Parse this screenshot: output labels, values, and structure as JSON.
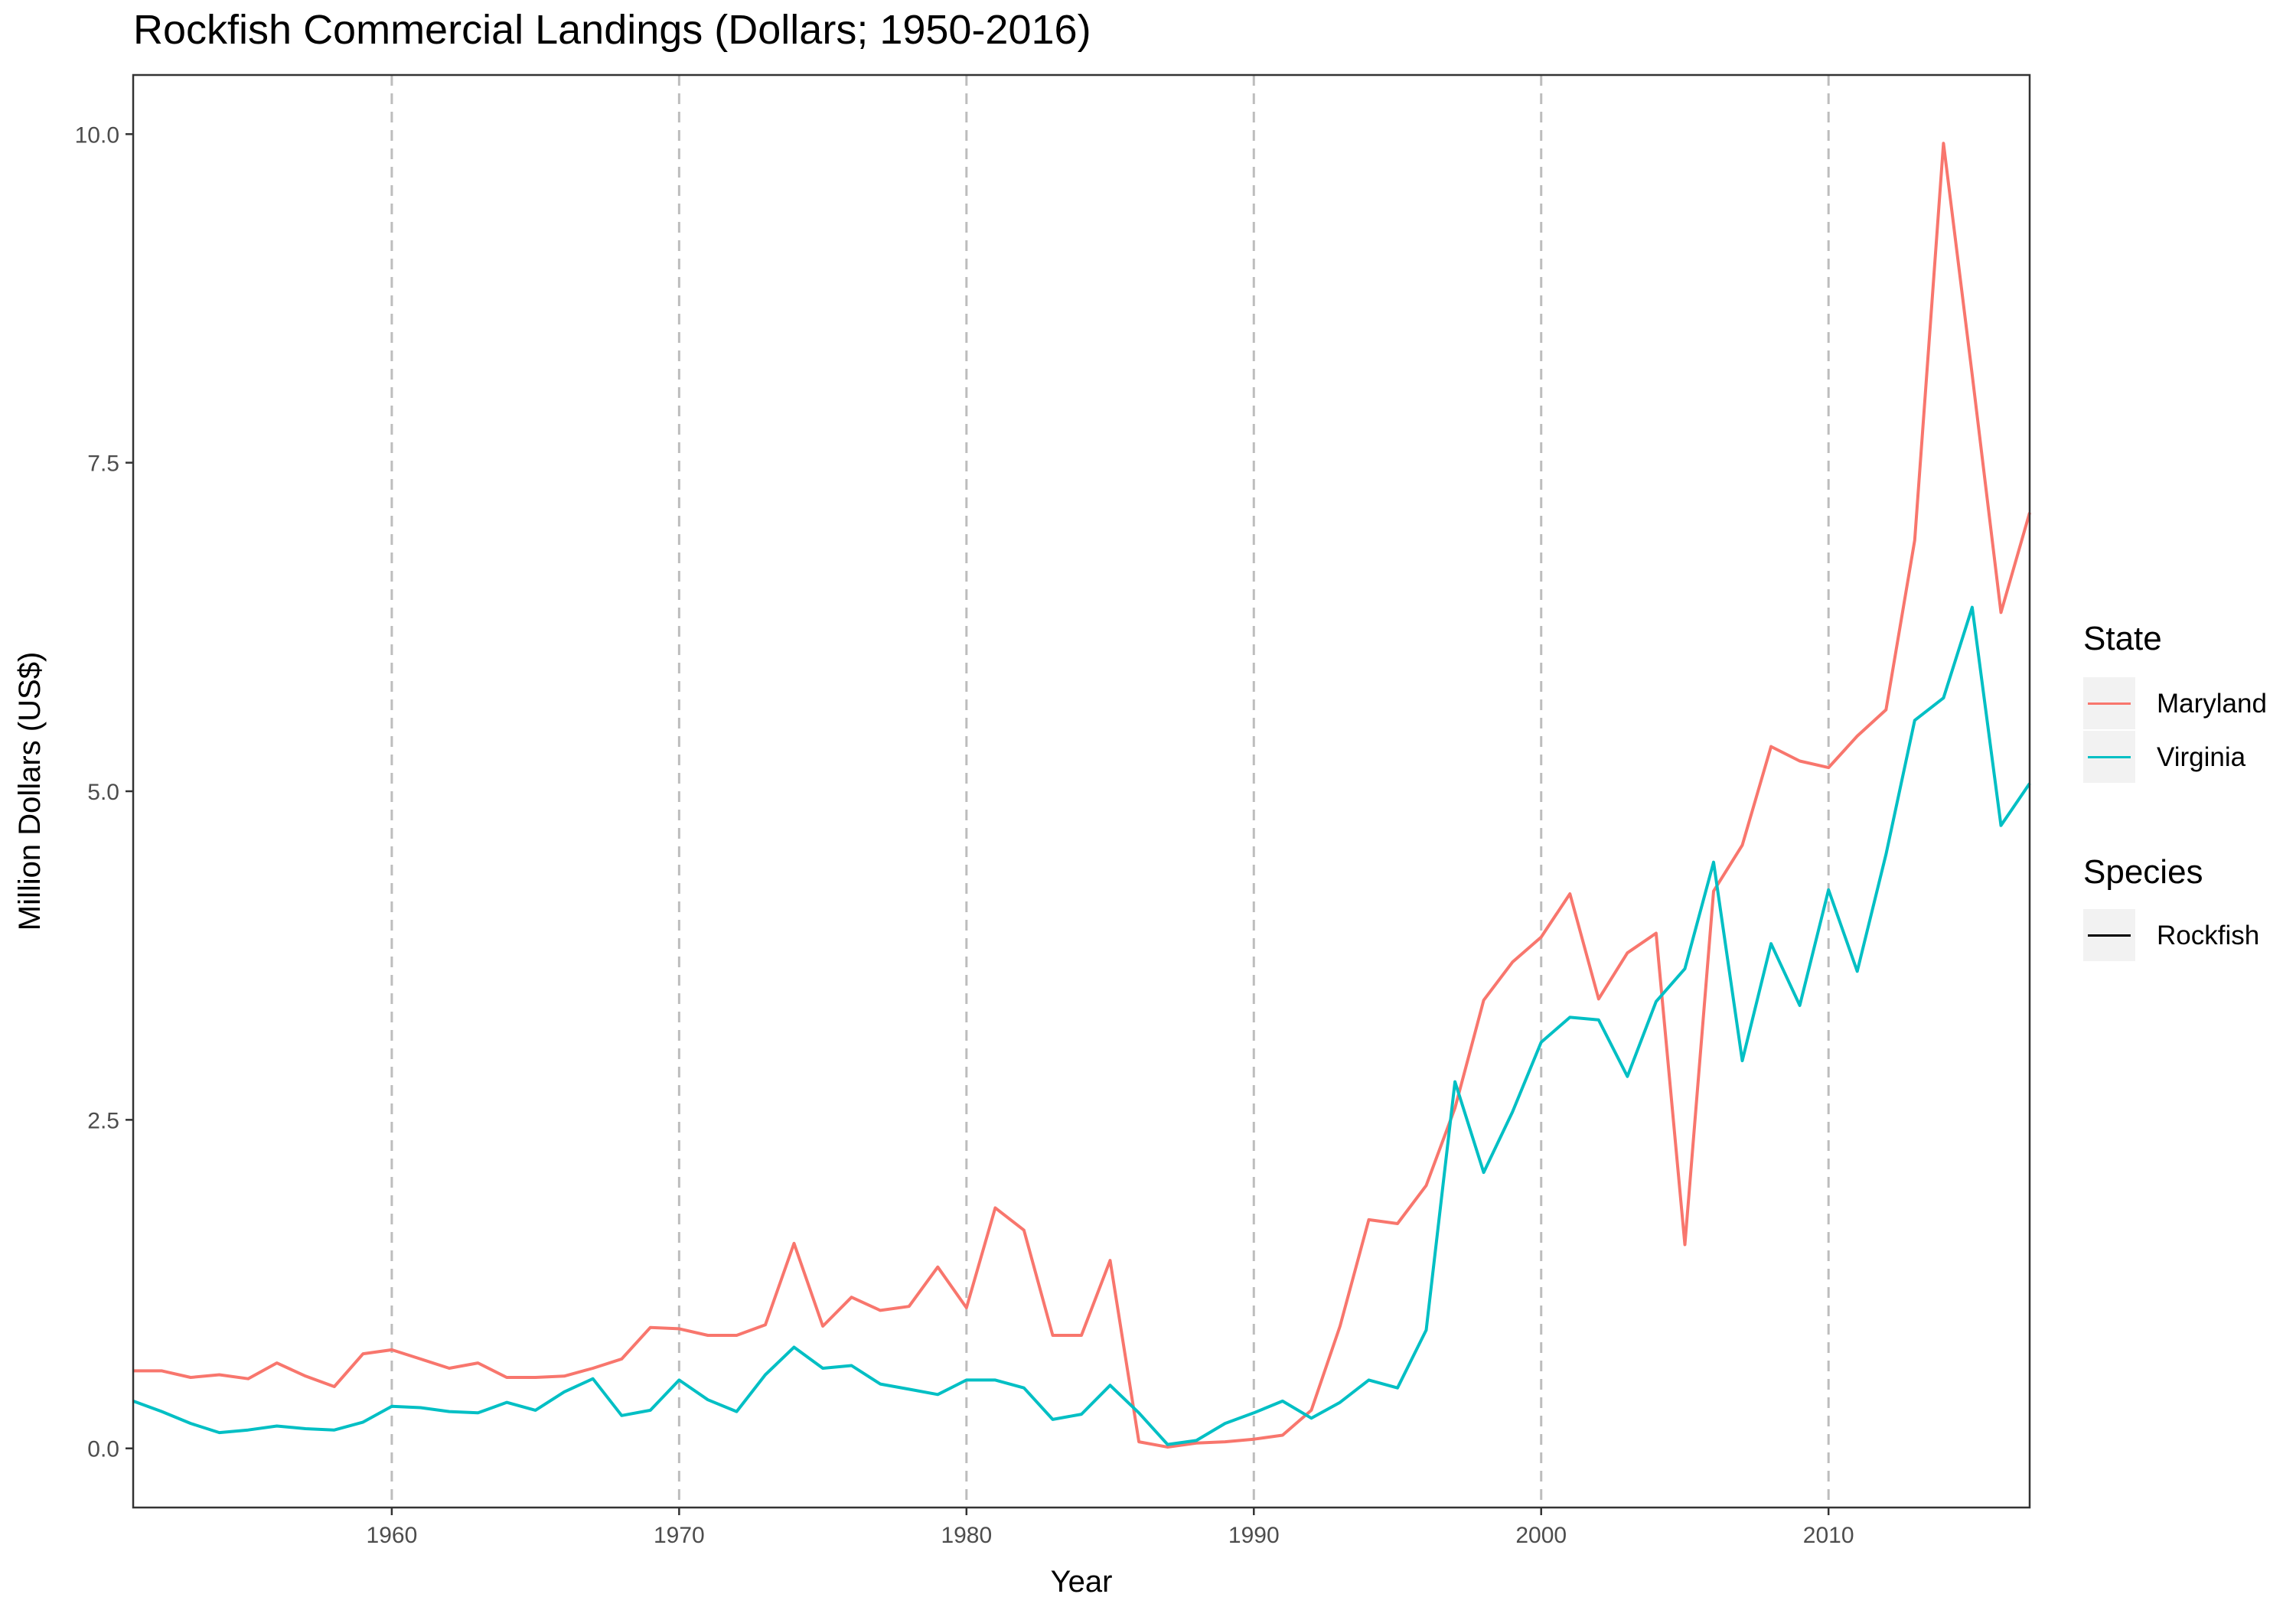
{
  "chart_data": {
    "type": "line",
    "title": "Rockfish Commercial Landings (Dollars; 1950-2016)",
    "xlabel": "Year",
    "ylabel": "Million Dollars (US$)",
    "xlim": [
      1951,
      2017
    ],
    "ylim": [
      -0.45,
      10.45
    ],
    "x_ticks": [
      1960,
      1970,
      1980,
      1990,
      2000,
      2010
    ],
    "x_tick_labels": [
      "1960",
      "1970",
      "1980",
      "1990",
      "2000",
      "2010"
    ],
    "y_ticks": [
      0,
      2.5,
      5,
      7.5,
      10
    ],
    "y_tick_labels": [
      "0.0",
      "2.5",
      "5.0",
      "7.5",
      "10.0"
    ],
    "vertical_dashed_lines_at": [
      1960,
      1970,
      1980,
      1990,
      2000,
      2010
    ],
    "grid": false,
    "legend_position": "right",
    "legends": [
      {
        "title": "State",
        "entries": [
          "Maryland",
          "Virginia"
        ]
      },
      {
        "title": "Species",
        "entries": [
          "Rockfish"
        ]
      }
    ],
    "x": [
      1951,
      1952,
      1953,
      1954,
      1955,
      1956,
      1957,
      1958,
      1959,
      1960,
      1961,
      1962,
      1963,
      1964,
      1965,
      1966,
      1967,
      1968,
      1969,
      1970,
      1971,
      1972,
      1973,
      1974,
      1975,
      1976,
      1977,
      1978,
      1979,
      1980,
      1981,
      1982,
      1983,
      1984,
      1985,
      1986,
      1987,
      1988,
      1989,
      1990,
      1991,
      1992,
      1993,
      1994,
      1995,
      1996,
      1997,
      1998,
      1999,
      2000,
      2001,
      2002,
      2003,
      2004,
      2005,
      2006,
      2007,
      2008,
      2009,
      2010,
      2011,
      2012,
      2013,
      2014,
      2015,
      2016,
      2017
    ],
    "series": [
      {
        "name": "Maryland",
        "color": "#F8766D",
        "values": [
          0.59,
          0.59,
          0.54,
          0.56,
          0.53,
          0.65,
          0.55,
          0.47,
          0.72,
          0.75,
          0.68,
          0.61,
          0.65,
          0.54,
          0.54,
          0.55,
          0.61,
          0.68,
          0.92,
          0.91,
          0.86,
          0.86,
          0.94,
          1.56,
          0.93,
          1.15,
          1.05,
          1.08,
          1.38,
          1.07,
          1.83,
          1.66,
          0.86,
          0.86,
          1.43,
          0.05,
          0.01,
          0.04,
          0.05,
          0.07,
          0.1,
          0.29,
          0.93,
          1.74,
          1.71,
          2.0,
          2.59,
          3.41,
          3.7,
          3.89,
          4.22,
          3.42,
          3.77,
          3.92,
          1.55,
          4.24,
          4.59,
          5.34,
          5.23,
          5.18,
          5.42,
          5.62,
          6.91,
          9.93,
          8.17,
          6.36,
          7.12
        ]
      },
      {
        "name": "Virginia",
        "color": "#00BFC4",
        "values": [
          0.36,
          0.28,
          0.19,
          0.12,
          0.14,
          0.17,
          0.15,
          0.14,
          0.2,
          0.32,
          0.31,
          0.28,
          0.27,
          0.35,
          0.29,
          0.43,
          0.53,
          0.25,
          0.29,
          0.52,
          0.37,
          0.28,
          0.56,
          0.77,
          0.61,
          0.63,
          0.49,
          0.45,
          0.41,
          0.52,
          0.52,
          0.46,
          0.22,
          0.26,
          0.48,
          0.27,
          0.03,
          0.06,
          0.19,
          0.27,
          0.36,
          0.23,
          0.35,
          0.52,
          0.46,
          0.9,
          2.79,
          2.1,
          2.56,
          3.09,
          3.28,
          3.26,
          2.83,
          3.4,
          3.65,
          4.46,
          2.95,
          3.84,
          3.37,
          4.25,
          3.63,
          4.52,
          5.54,
          5.71,
          6.4,
          4.74,
          5.06
        ]
      }
    ]
  }
}
